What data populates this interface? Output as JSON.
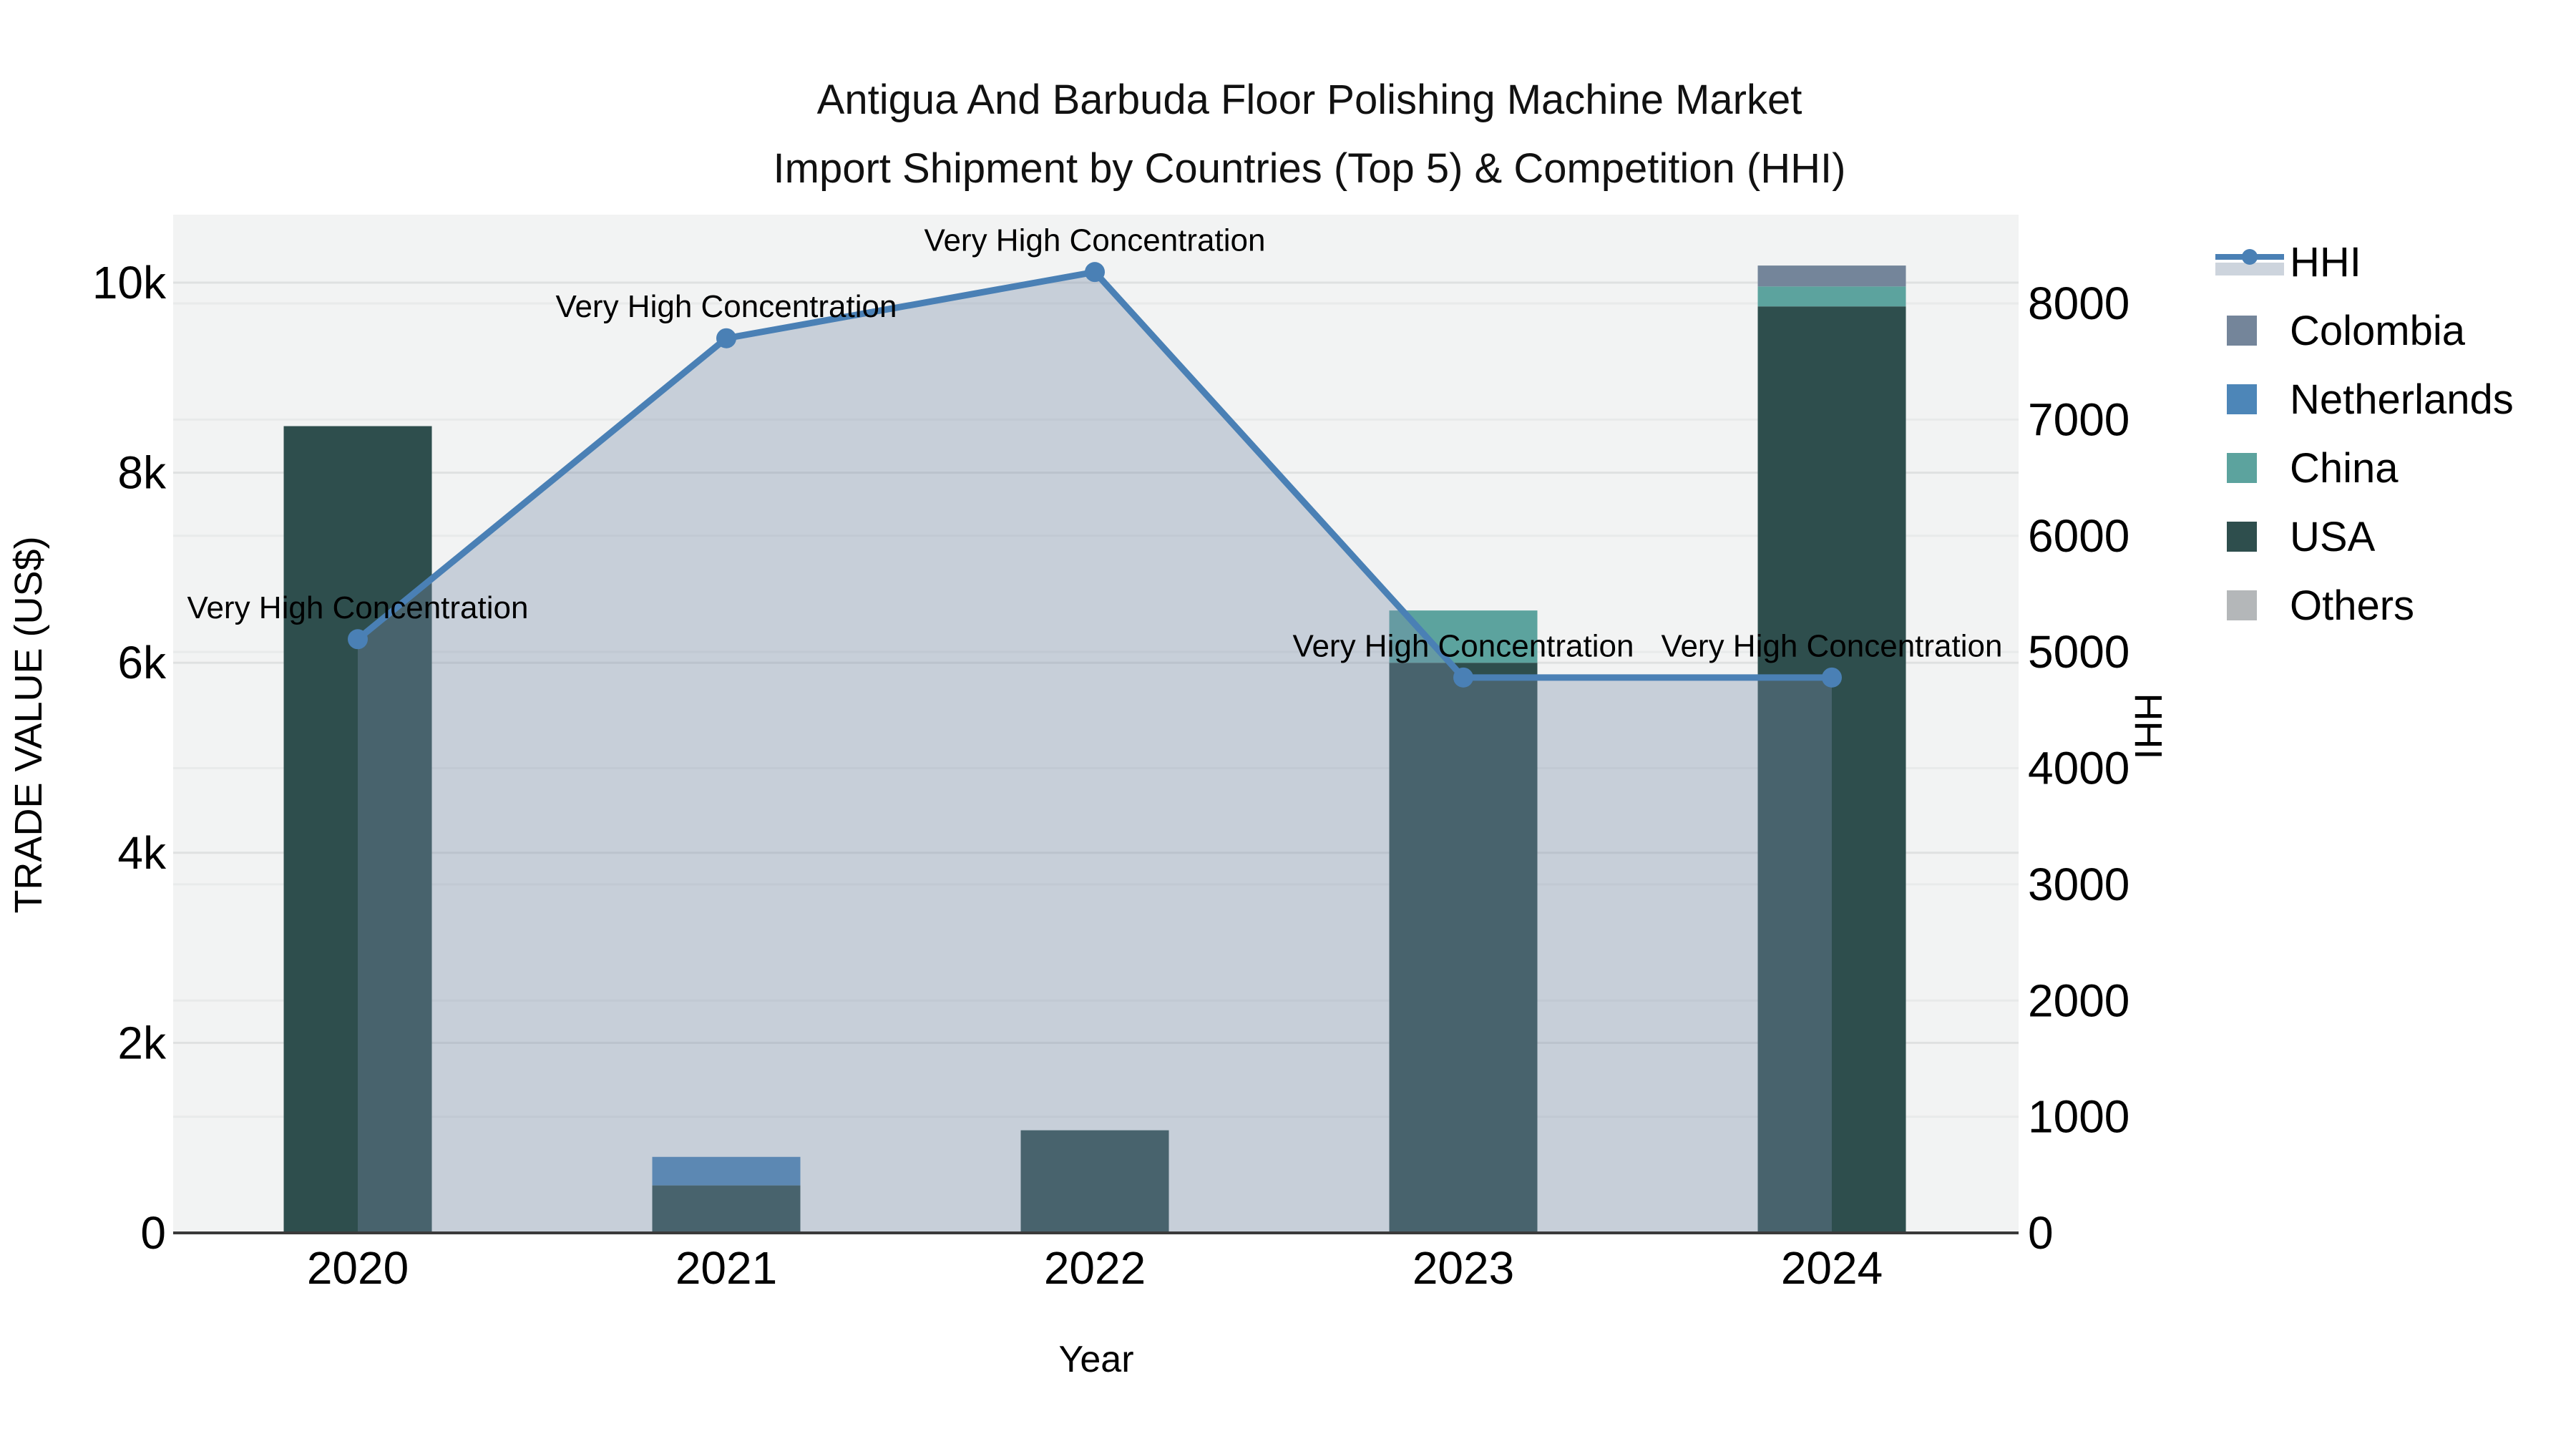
{
  "title": {
    "line1": "Antigua And Barbuda Floor Polishing Machine Market",
    "line2": "Import Shipment by Countries (Top 5) & Competition (HHI)"
  },
  "colors": {
    "plot_background": "#f2f3f3",
    "gridline_left": "#dfe1e1",
    "gridline_right": "#e8eaea",
    "axis_line": "#3a3a3a",
    "hhi_line": "#4a80b5",
    "hhi_area": "rgba(120,140,170,0.35)",
    "legend_area_swatch": "#cdd4dd",
    "usa": "#2e4e4d",
    "netherlands": "#4d86b8",
    "china": "#5ca39e",
    "colombia": "#74859a",
    "others": "#b4b7b9"
  },
  "legend": {
    "items": [
      {
        "label": "HHI",
        "type": "line"
      },
      {
        "label": "Colombia",
        "type": "swatch",
        "color": "#74859a"
      },
      {
        "label": "Netherlands",
        "type": "swatch",
        "color": "#4d86b8"
      },
      {
        "label": "China",
        "type": "swatch",
        "color": "#5ca39e"
      },
      {
        "label": "USA",
        "type": "swatch",
        "color": "#2e4e4d"
      },
      {
        "label": "Others",
        "type": "swatch",
        "color": "#b4b7b9"
      }
    ]
  },
  "chart_data": {
    "type": "combo-stacked-bar-line",
    "categories": [
      "2020",
      "2021",
      "2022",
      "2023",
      "2024"
    ],
    "bar_series": [
      {
        "name": "Colombia",
        "color": "#74859a",
        "values": [
          0,
          0,
          0,
          0,
          220
        ]
      },
      {
        "name": "Netherlands",
        "color": "#4d86b8",
        "values": [
          0,
          300,
          0,
          0,
          0
        ]
      },
      {
        "name": "China",
        "color": "#5ca39e",
        "values": [
          0,
          0,
          0,
          550,
          210
        ]
      },
      {
        "name": "USA",
        "color": "#2e4e4d",
        "values": [
          8490,
          500,
          1080,
          6000,
          9750
        ]
      },
      {
        "name": "Others",
        "color": "#b4b7b9",
        "values": [
          0,
          0,
          0,
          0,
          0
        ]
      }
    ],
    "stack_order": [
      "USA",
      "Netherlands",
      "China",
      "Colombia",
      "Others"
    ],
    "bar_totals": [
      8490,
      800,
      1080,
      6550,
      10180
    ],
    "line_series": {
      "name": "HHI",
      "values": [
        5110,
        7700,
        8270,
        4780,
        4780
      ]
    },
    "annotation_text": "Very High Concentration",
    "annotated_points": [
      "2020",
      "2021",
      "2022",
      "2023",
      "2024"
    ],
    "xlabel": "Year",
    "ylabel_left": "TRADE VALUE (US$)",
    "ylabel_right": "HHI",
    "left_ticks": [
      {
        "label": "0",
        "value": 0
      },
      {
        "label": "2k",
        "value": 2000
      },
      {
        "label": "4k",
        "value": 4000
      },
      {
        "label": "6k",
        "value": 6000
      },
      {
        "label": "8k",
        "value": 8000
      },
      {
        "label": "10k",
        "value": 10000
      }
    ],
    "right_ticks": [
      {
        "label": "0",
        "value": 0
      },
      {
        "label": "1000",
        "value": 1000
      },
      {
        "label": "2000",
        "value": 2000
      },
      {
        "label": "3000",
        "value": 3000
      },
      {
        "label": "4000",
        "value": 4000
      },
      {
        "label": "5000",
        "value": 5000
      },
      {
        "label": "6000",
        "value": 6000
      },
      {
        "label": "7000",
        "value": 7000
      },
      {
        "label": "8000",
        "value": 8000
      }
    ],
    "ylim_left": [
      0,
      10700
    ],
    "ylim_right": [
      0,
      8740
    ],
    "grid": true,
    "legend_position": "right"
  }
}
